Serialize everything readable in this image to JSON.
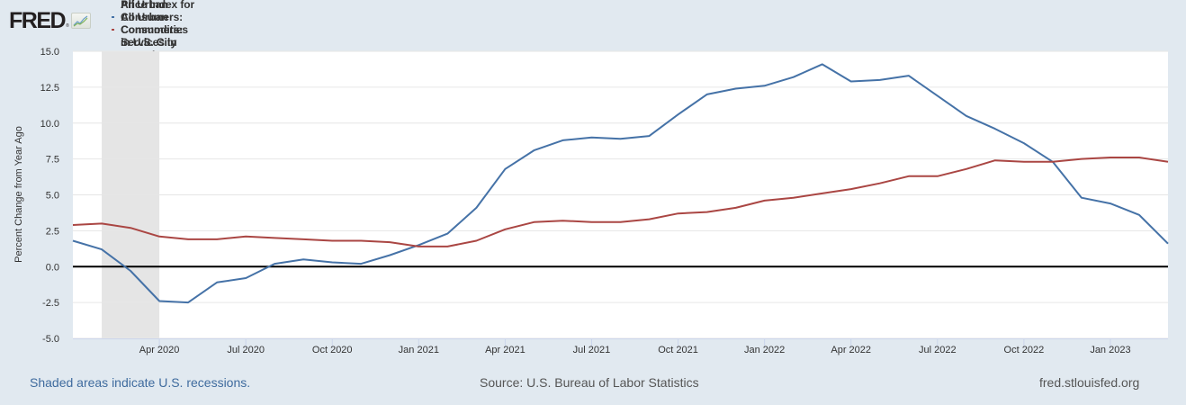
{
  "header": {
    "logo_text": "FRED",
    "logo_reg": "®",
    "logo_icon": "line-chart-icon"
  },
  "legend": [
    {
      "label": "Consumer Price Index for All Urban Consumers: Commodities in U.S. City Average",
      "color": "#4572a7"
    },
    {
      "label": "Consumer Price Index for All Urban Consumers: Services in U.S. City Average",
      "color": "#aa4643"
    }
  ],
  "footer": {
    "recession_note": "Shaded areas indicate U.S. recessions.",
    "source": "Source: U.S. Bureau of Labor Statistics",
    "site": "fred.stlouisfed.org"
  },
  "chart_data": {
    "type": "line",
    "title": "",
    "xlabel": "",
    "ylabel": "Percent Change from Year Ago",
    "ylim": [
      -5.0,
      15.0
    ],
    "yticks": [
      -5.0,
      -2.5,
      0.0,
      2.5,
      5.0,
      7.5,
      10.0,
      12.5,
      15.0
    ],
    "ytick_labels": [
      "-5.0",
      "-2.5",
      "0.0",
      "2.5",
      "5.0",
      "7.5",
      "10.0",
      "12.5",
      "15.0"
    ],
    "grid": true,
    "legend_position": "top-left",
    "x": [
      "2020-01",
      "2020-02",
      "2020-03",
      "2020-04",
      "2020-05",
      "2020-06",
      "2020-07",
      "2020-08",
      "2020-09",
      "2020-10",
      "2020-11",
      "2020-12",
      "2021-01",
      "2021-02",
      "2021-03",
      "2021-04",
      "2021-05",
      "2021-06",
      "2021-07",
      "2021-08",
      "2021-09",
      "2021-10",
      "2021-11",
      "2021-12",
      "2022-01",
      "2022-02",
      "2022-03",
      "2022-04",
      "2022-05",
      "2022-06",
      "2022-07",
      "2022-08",
      "2022-09",
      "2022-10",
      "2022-11",
      "2022-12",
      "2023-01",
      "2023-02",
      "2023-03"
    ],
    "xticks": [
      {
        "index": 3,
        "label": "Apr 2020"
      },
      {
        "index": 6,
        "label": "Jul 2020"
      },
      {
        "index": 9,
        "label": "Oct 2020"
      },
      {
        "index": 12,
        "label": "Jan 2021"
      },
      {
        "index": 15,
        "label": "Apr 2021"
      },
      {
        "index": 18,
        "label": "Jul 2021"
      },
      {
        "index": 21,
        "label": "Oct 2021"
      },
      {
        "index": 24,
        "label": "Jan 2022"
      },
      {
        "index": 27,
        "label": "Apr 2022"
      },
      {
        "index": 30,
        "label": "Jul 2022"
      },
      {
        "index": 33,
        "label": "Oct 2022"
      },
      {
        "index": 36,
        "label": "Jan 2023"
      }
    ],
    "recessions": [
      {
        "start_index": 1,
        "end_index": 3,
        "start": "2020-02",
        "end": "2020-04"
      }
    ],
    "series": [
      {
        "name": "Consumer Price Index for All Urban Consumers: Commodities in U.S. City Average",
        "color": "#4572a7",
        "values": [
          1.8,
          1.2,
          -0.3,
          -2.4,
          -2.5,
          -1.1,
          -0.8,
          0.2,
          0.5,
          0.3,
          0.2,
          0.8,
          1.5,
          2.3,
          4.1,
          6.8,
          8.1,
          8.8,
          9.0,
          8.9,
          9.1,
          10.6,
          12.0,
          12.4,
          12.6,
          13.2,
          14.1,
          12.9,
          13.0,
          13.3,
          11.9,
          10.5,
          9.6,
          8.6,
          7.3,
          4.8,
          4.4,
          3.6,
          1.6
        ]
      },
      {
        "name": "Consumer Price Index for All Urban Consumers: Services in U.S. City Average",
        "color": "#aa4643",
        "values": [
          2.9,
          3.0,
          2.7,
          2.1,
          1.9,
          1.9,
          2.1,
          2.0,
          1.9,
          1.8,
          1.8,
          1.7,
          1.4,
          1.4,
          1.8,
          2.6,
          3.1,
          3.2,
          3.1,
          3.1,
          3.3,
          3.7,
          3.8,
          4.1,
          4.6,
          4.8,
          5.1,
          5.4,
          5.8,
          6.3,
          6.3,
          6.8,
          7.4,
          7.3,
          7.3,
          7.5,
          7.6,
          7.6,
          7.3
        ]
      }
    ]
  }
}
